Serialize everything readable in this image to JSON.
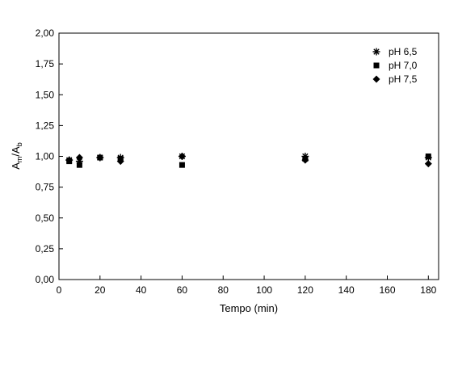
{
  "chart_data": {
    "type": "scatter",
    "title": "",
    "xlabel": "Tempo (min)",
    "ylabel": {
      "main": "A",
      "sub1": "m",
      "sep": "/A",
      "sub2": "b"
    },
    "xlim": [
      0,
      185
    ],
    "ylim": [
      0,
      2
    ],
    "x_ticks": [
      "0",
      "20",
      "40",
      "60",
      "80",
      "100",
      "120",
      "140",
      "160",
      "180"
    ],
    "x_tick_values": [
      0,
      20,
      40,
      60,
      80,
      100,
      120,
      140,
      160,
      180
    ],
    "y_ticks": [
      "0,00",
      "0,25",
      "0,50",
      "0,75",
      "1,00",
      "1,25",
      "1,50",
      "1,75",
      "2,00"
    ],
    "y_tick_values": [
      0,
      0.25,
      0.5,
      0.75,
      1.0,
      1.25,
      1.5,
      1.75,
      2.0
    ],
    "grid": false,
    "legend_position": "top-right",
    "series": [
      {
        "name": "pH 6,5",
        "marker": "asterisk",
        "points": [
          {
            "x": 5,
            "y": 0.97
          },
          {
            "x": 10,
            "y": 0.96
          },
          {
            "x": 20,
            "y": 0.99
          },
          {
            "x": 30,
            "y": 0.99
          },
          {
            "x": 60,
            "y": 1.0
          },
          {
            "x": 120,
            "y": 1.0
          },
          {
            "x": 180,
            "y": 0.99
          }
        ]
      },
      {
        "name": "pH 7,0",
        "marker": "square",
        "points": [
          {
            "x": 5,
            "y": 0.96
          },
          {
            "x": 10,
            "y": 0.93
          },
          {
            "x": 20,
            "y": 0.99
          },
          {
            "x": 30,
            "y": 0.98
          },
          {
            "x": 60,
            "y": 0.93
          },
          {
            "x": 120,
            "y": 0.98
          },
          {
            "x": 180,
            "y": 1.0
          }
        ]
      },
      {
        "name": "pH 7,5",
        "marker": "diamond",
        "points": [
          {
            "x": 5,
            "y": 0.97
          },
          {
            "x": 10,
            "y": 0.99
          },
          {
            "x": 20,
            "y": 0.99
          },
          {
            "x": 30,
            "y": 0.96
          },
          {
            "x": 60,
            "y": 1.0
          },
          {
            "x": 120,
            "y": 0.97
          },
          {
            "x": 180,
            "y": 0.94
          }
        ]
      }
    ]
  }
}
